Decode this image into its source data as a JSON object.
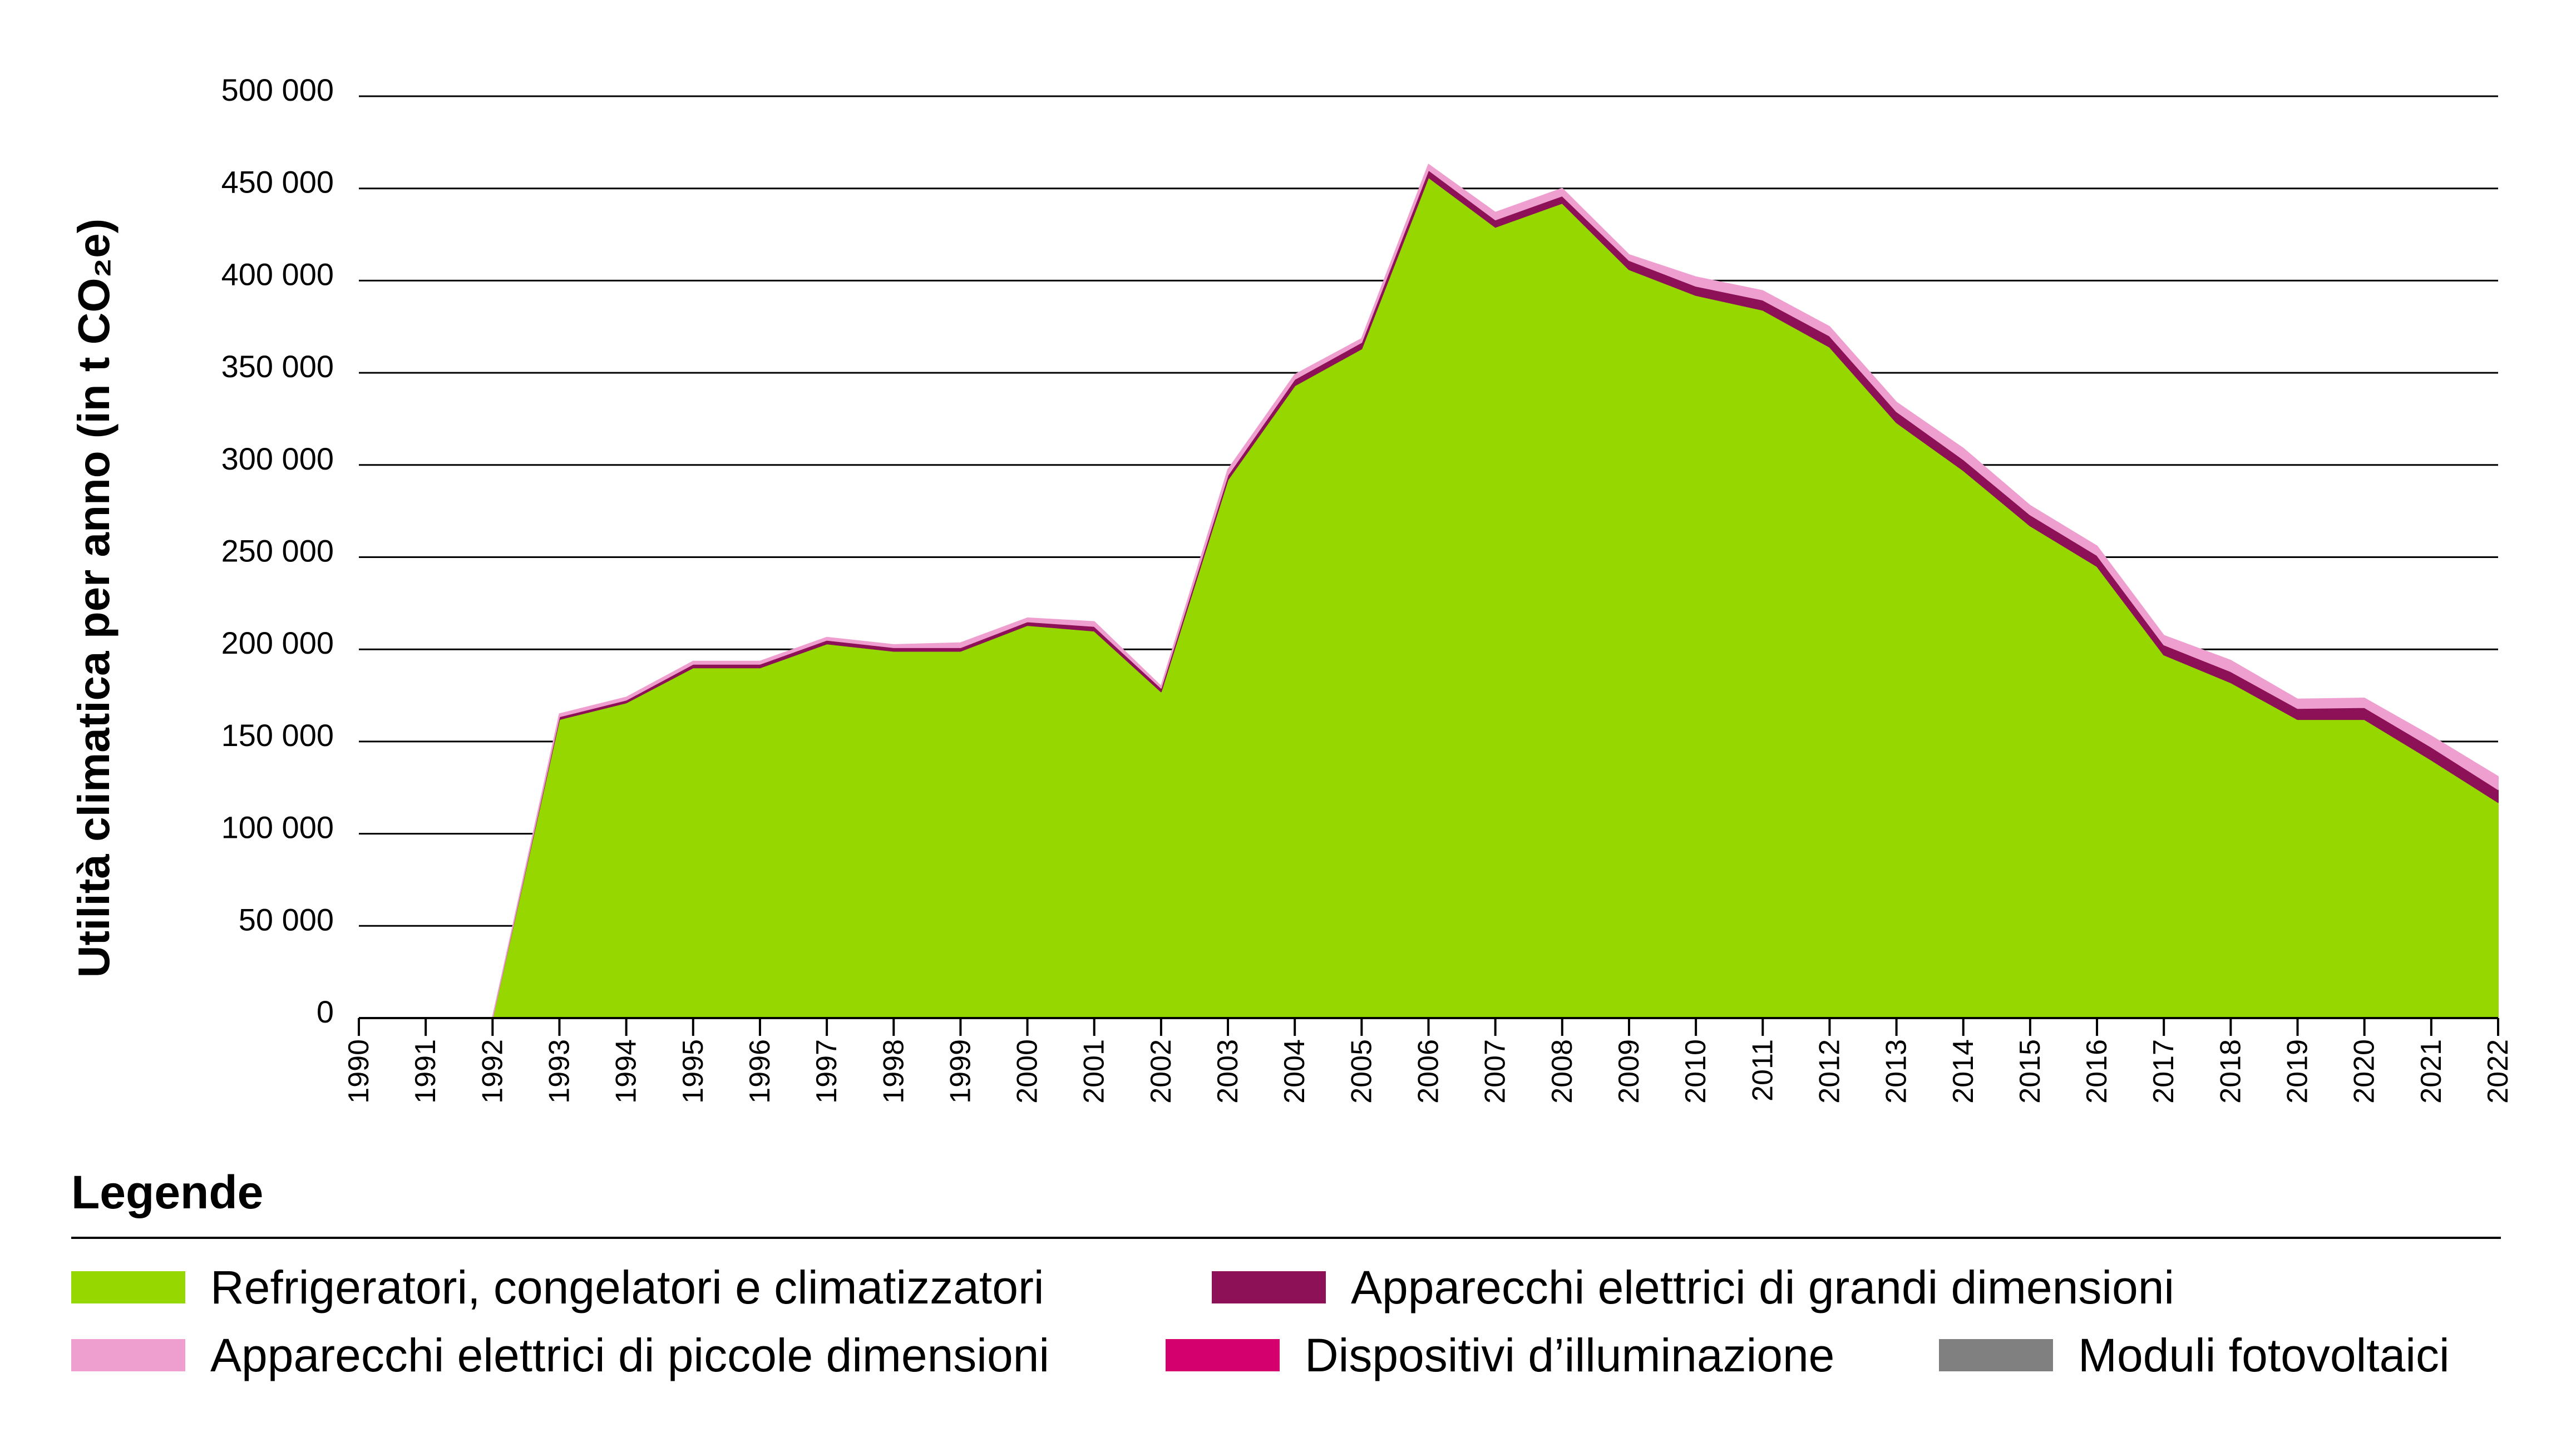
{
  "chart_data": {
    "type": "area",
    "stacked": true,
    "ylabel": "Utilità climatica per anno (in t CO₂e)",
    "ylim": [
      0,
      500000
    ],
    "yticks": [
      0,
      50000,
      100000,
      150000,
      200000,
      250000,
      300000,
      350000,
      400000,
      450000,
      500000
    ],
    "ytick_labels": [
      "0",
      "50 000",
      "100 000",
      "150 000",
      "200 000",
      "250 000",
      "300 000",
      "350 000",
      "400 000",
      "450 000",
      "500 000"
    ],
    "grid": true,
    "categories": [
      "1990",
      "1991",
      "1992",
      "1993",
      "1994",
      "1995",
      "1996",
      "1997",
      "1998",
      "1999",
      "2000",
      "2001",
      "2002",
      "2003",
      "2004",
      "2005",
      "2006",
      "2007",
      "2008",
      "2009",
      "2010",
      "2011",
      "2012",
      "2013",
      "2014",
      "2015",
      "2016",
      "2017",
      "2018",
      "2019",
      "2020",
      "2021",
      "2022"
    ],
    "series": [
      {
        "name": "Refrigeratori, congelatori e climatizzatori",
        "color": "#97d700",
        "values": [
          0,
          0,
          0,
          162000,
          171000,
          190000,
          190000,
          203000,
          199000,
          199000,
          213000,
          210000,
          177000,
          292000,
          343000,
          363000,
          456000,
          429000,
          442000,
          406000,
          392000,
          384000,
          364000,
          323000,
          297000,
          267000,
          245000,
          197000,
          182000,
          162000,
          162000,
          140000,
          117000
        ]
      },
      {
        "name": "Apparecchi elettrici di grandi dimensioni",
        "color": "#8c1157",
        "values": [
          0,
          0,
          0,
          1500,
          1500,
          2000,
          2000,
          2000,
          2000,
          2000,
          2000,
          2500,
          2000,
          2500,
          3500,
          3500,
          4000,
          4000,
          4000,
          5000,
          5000,
          5500,
          6000,
          6000,
          6000,
          6000,
          6000,
          5500,
          6000,
          6000,
          6500,
          7000,
          7000
        ]
      },
      {
        "name": "Dispositivi d’illuminazione",
        "color": "#d4006e",
        "values": [
          0,
          0,
          0,
          0,
          0,
          0,
          0,
          0,
          0,
          0,
          0,
          0,
          0,
          0,
          0,
          0,
          0,
          0,
          0,
          0,
          0,
          0,
          0,
          0,
          0,
          0,
          0,
          0,
          0,
          0,
          0,
          0,
          0
        ]
      },
      {
        "name": "Apparecchi elettrici di piccole dimensioni",
        "color": "#ef9fcf",
        "values": [
          0,
          0,
          0,
          1500,
          1500,
          1500,
          1500,
          1500,
          1500,
          2500,
          2000,
          2500,
          1000,
          3000,
          2500,
          2000,
          3000,
          4000,
          4000,
          3000,
          5000,
          5000,
          5000,
          5000,
          6000,
          5000,
          5000,
          5000,
          6000,
          5000,
          5000,
          6000,
          7000
        ]
      },
      {
        "name": "Moduli fotovoltaici",
        "color": "#808080",
        "values": [
          0,
          0,
          0,
          0,
          0,
          0,
          0,
          0,
          0,
          0,
          0,
          0,
          0,
          0,
          0,
          0,
          0,
          0,
          0,
          0,
          0,
          0,
          0,
          0,
          0,
          0,
          0,
          0,
          0,
          0,
          0,
          0,
          0
        ]
      }
    ],
    "legend_title": "Legende",
    "legend_placement": "bottom",
    "legend_rows": [
      [
        {
          "label": "Refrigeratori, congelatori e climatizzatori",
          "color": "#97d700"
        },
        {
          "label": "Apparecchi elettrici di grandi dimensioni",
          "color": "#8c1157"
        }
      ],
      [
        {
          "label": "Apparecchi elettrici di piccole dimensioni",
          "color": "#ef9fcf"
        },
        {
          "label": "Dispositivi d’illuminazione",
          "color": "#d4006e"
        },
        {
          "label": "Moduli fotovoltaici",
          "color": "#808080"
        }
      ]
    ]
  }
}
